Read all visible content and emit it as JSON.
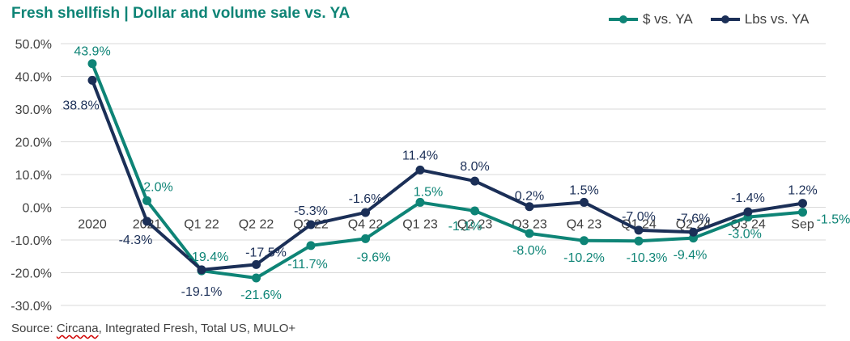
{
  "chart_data": {
    "type": "line",
    "title": "Fresh shellfish | Dollar and volume sale vs. YA",
    "categories": [
      "2020",
      "2021",
      "Q1 22",
      "Q2 22",
      "Q3 22",
      "Q4 22",
      "Q1 23",
      "Q2 23",
      "Q3 23",
      "Q4 23",
      "Q1 24",
      "Q2 24",
      "Q3 24",
      "Sep"
    ],
    "series": [
      {
        "name": "$ vs. YA",
        "color": "#0e8476",
        "values": [
          43.9,
          2.0,
          -19.4,
          -21.6,
          -11.7,
          -9.6,
          1.5,
          -1.1,
          -8.0,
          -10.2,
          -10.3,
          -9.4,
          -3.0,
          -1.5
        ],
        "labels": [
          "43.9%",
          "2.0%",
          "-19.4%",
          "-21.6%",
          "-11.7%",
          "-9.6%",
          "1.5%",
          "-1.1%",
          "-8.0%",
          "-10.2%",
          "-10.3%",
          "-9.4%",
          "-3.0%",
          "-1.5%"
        ]
      },
      {
        "name": "Lbs vs. YA",
        "color": "#1b2f57",
        "values": [
          38.8,
          -4.3,
          -19.1,
          -17.5,
          -5.3,
          -1.6,
          11.4,
          8.0,
          0.2,
          1.5,
          -7.0,
          -7.6,
          -1.4,
          1.2
        ],
        "labels": [
          "38.8%",
          "-4.3%",
          "-19.1%",
          "-17.5%",
          "-5.3%",
          "-1.6%",
          "11.4%",
          "8.0%",
          "0.2%",
          "1.5%",
          "-7.0%",
          "-7.6%",
          "-1.4%",
          "1.2%"
        ]
      }
    ],
    "yticks": [
      50,
      40,
      30,
      20,
      10,
      0,
      -10,
      -20,
      -30
    ],
    "ytick_labels": [
      "50.0%",
      "40.0%",
      "30.0%",
      "20.0%",
      "10.0%",
      "0.0%",
      "-10.0%",
      "-20.0%",
      "-30.0%"
    ],
    "ylim": [
      -30,
      50
    ],
    "grid": true,
    "legend": "top-right",
    "source": "Source: Circana, Integrated Fresh, Total US, MULO+"
  }
}
